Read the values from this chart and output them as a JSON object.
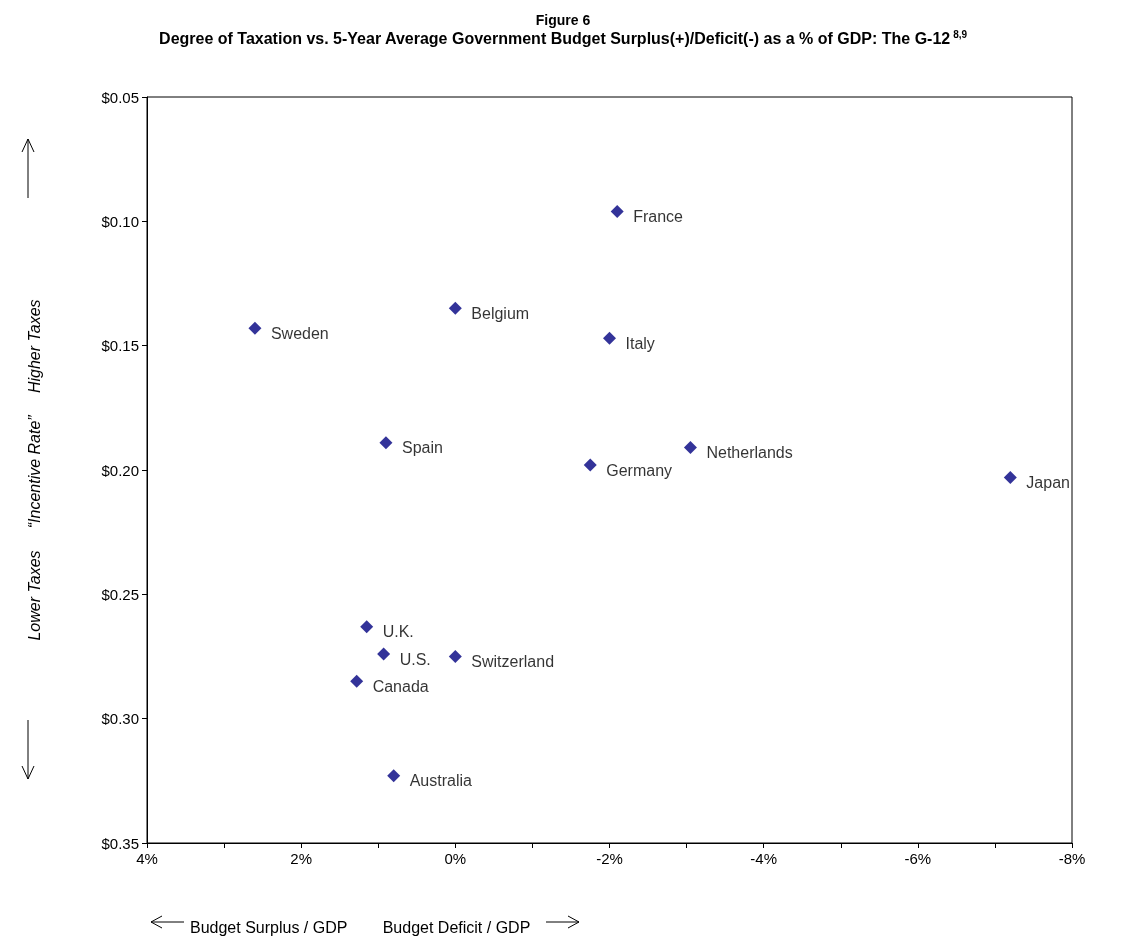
{
  "chart_data": {
    "type": "scatter",
    "title": "Figure 6",
    "subtitle": "Degree of Taxation vs. 5-Year Average Government Budget Surplus(+)/Deficit(-) as a % of GDP: The G-12$^{8,9}$",
    "xlabel": "Budget Surplus / GDP        Budget Deficit / GDP",
    "ylabel": "Lower Taxes     “Incentive Rate”     Higher Taxes",
    "series": [
      {
        "color": "#000080",
        "x": [
          -2.1,
          0,
          2.6,
          -2.0,
          0.9,
          -1.75,
          -3.05,
          -7.2,
          1.15,
          0.93,
          0,
          1.28,
          0.8
        ],
        "values": [
          0.096,
          0.135,
          0.143,
          0.147,
          0.189,
          0.198,
          0.191,
          0.203,
          0.263,
          0.274,
          0.275,
          0.285,
          0.323
        ]
      }
    ],
    "annotations": [
      {
        "text": "France",
        "x": -2.1,
        "y": 0.096
      },
      {
        "text": "Belgium",
        "x": 0,
        "y": 0.135
      },
      {
        "text": "Sweden",
        "x": 2.6,
        "y": 0.143
      },
      {
        "text": "Italy",
        "x": -2.0,
        "y": 0.147
      },
      {
        "text": "Spain",
        "x": 0.9,
        "y": 0.189
      },
      {
        "text": "Germany",
        "x": -1.75,
        "y": 0.198
      },
      {
        "text": "Netherlands",
        "x": -3.05,
        "y": 0.191
      },
      {
        "text": "Japan",
        "x": -7.2,
        "y": 0.203
      },
      {
        "text": "U.K.",
        "x": 1.15,
        "y": 0.263
      },
      {
        "text": "U.S.",
        "x": 0.93,
        "y": 0.274
      },
      {
        "text": "Switzerland",
        "x": 0,
        "y": 0.275
      },
      {
        "text": "Canada",
        "x": 1.28,
        "y": 0.285
      },
      {
        "text": "Australia",
        "x": 0.8,
        "y": 0.323
      }
    ],
    "xlim": [
      4,
      -8
    ],
    "xticks": [
      {
        "value": 4,
        "label": "4%"
      },
      {
        "value": 3,
        "label": null
      },
      {
        "value": 2,
        "label": "2%"
      },
      {
        "value": 1,
        "label": null
      },
      {
        "value": 0,
        "label": "0%"
      },
      {
        "value": -1,
        "label": null
      },
      {
        "value": -2,
        "label": "-2%"
      },
      {
        "value": -3,
        "label": null
      },
      {
        "value": -4,
        "label": "-4%"
      },
      {
        "value": -5,
        "label": null
      },
      {
        "value": -6,
        "label": "-6%"
      },
      {
        "value": -7,
        "label": null
      },
      {
        "value": -8,
        "label": "-8%"
      }
    ],
    "ylim": [
      0.35,
      0.05
    ],
    "yticks": [
      {
        "value": 0.05,
        "label": "$0.05"
      },
      {
        "value": 0.1,
        "label": "$0.10"
      },
      {
        "value": 0.15,
        "label": "$0.15"
      },
      {
        "value": 0.2,
        "label": "$0.20"
      },
      {
        "value": 0.25,
        "label": "$0.25"
      },
      {
        "value": 0.3,
        "label": "$0.30"
      },
      {
        "value": 0.35,
        "label": "$0.35"
      }
    ],
    "grid": false,
    "marker": "diamond"
  }
}
